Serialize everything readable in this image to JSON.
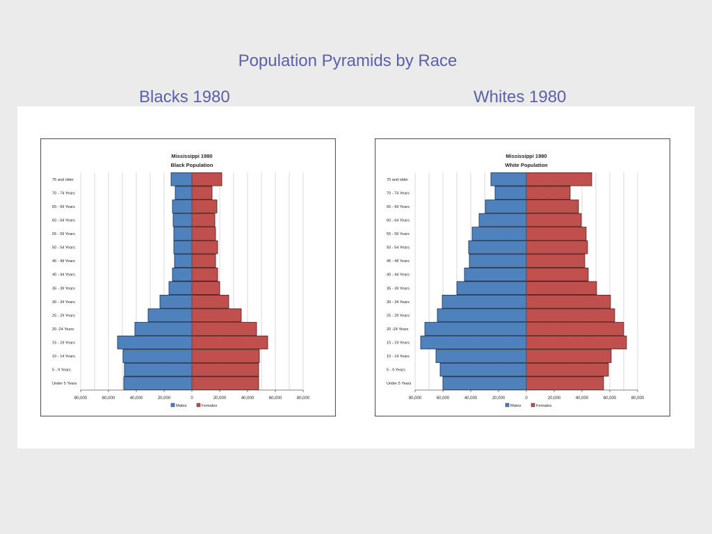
{
  "slide": {
    "title": "Population Pyramids by Race",
    "left_subtitle": "Blacks 1980",
    "right_subtitle": "Whites 1980"
  },
  "colors": {
    "males": "#4f81bd",
    "females": "#c0504d",
    "title_text": "#5b61a8"
  },
  "chart_data": [
    {
      "type": "bar",
      "orientation": "horizontal-pyramid",
      "title": "Mississippi 1980",
      "subtitle": "Black Population",
      "categories": [
        "Under 5 Years",
        "5 - 9 Years",
        "10 - 14 Years",
        "15 - 19 Years",
        "20 -24 Years",
        "25 - 29 Years",
        "30 - 34 Years",
        "35 - 39 Years",
        "40 - 44 Years",
        "45 - 49 Years",
        "50 - 54 Years",
        "55 - 59 Years",
        "60 - 64 Years",
        "65 - 69 Years",
        "70 - 74 Years",
        "75 and older"
      ],
      "series": [
        {
          "name": "Males",
          "values": [
            49000,
            48500,
            49500,
            53500,
            41000,
            31500,
            23000,
            16500,
            14000,
            12500,
            13000,
            13000,
            13500,
            14000,
            12000,
            15000
          ]
        },
        {
          "name": "Females",
          "values": [
            48000,
            48000,
            48500,
            54500,
            46500,
            35500,
            26500,
            20000,
            18500,
            17000,
            18500,
            17000,
            16500,
            18000,
            14500,
            21500
          ]
        }
      ],
      "xlim": [
        -80000,
        80000
      ],
      "xticks": [
        "80,000",
        "60,000",
        "40,000",
        "20,000",
        "0",
        "20,000",
        "40,000",
        "60,000",
        "80,000"
      ],
      "xtick_values": [
        -80000,
        -60000,
        -40000,
        -20000,
        0,
        20000,
        40000,
        60000,
        80000
      ],
      "grid": true,
      "legend": "bottom"
    },
    {
      "type": "bar",
      "orientation": "horizontal-pyramid",
      "title": "Mississippi 1980",
      "subtitle": "White Population",
      "categories": [
        "Under 5 Years",
        "5 - 9 Years",
        "10 - 14 Years",
        "15 - 19 Years",
        "20 -24 Years",
        "25 - 29 Years",
        "30 - 34 Years",
        "35 - 39 Years",
        "40 - 44 Years",
        "45 - 49 Years",
        "50 - 54 Years",
        "55 - 59 Years",
        "60 - 64 Years",
        "65 - 69 Years",
        "70 - 74 Years",
        "75 and older"
      ],
      "series": [
        {
          "name": "Males",
          "values": [
            60000,
            62000,
            65000,
            76000,
            73000,
            64000,
            60500,
            50000,
            44500,
            41000,
            41500,
            39000,
            34000,
            29500,
            22500,
            25500
          ]
        },
        {
          "name": "Females",
          "values": [
            55500,
            59000,
            61000,
            72000,
            70000,
            63500,
            60500,
            50500,
            44500,
            42000,
            44000,
            43000,
            39500,
            37500,
            31500,
            47000
          ]
        }
      ],
      "xlim": [
        -80000,
        80000
      ],
      "xticks": [
        "80,000",
        "60,000",
        "40,000",
        "20,000",
        "0",
        "20,000",
        "40,000",
        "60,000",
        "80,000"
      ],
      "xtick_values": [
        -80000,
        -60000,
        -40000,
        -20000,
        0,
        20000,
        40000,
        60000,
        80000
      ],
      "grid": true,
      "legend": "bottom"
    }
  ]
}
